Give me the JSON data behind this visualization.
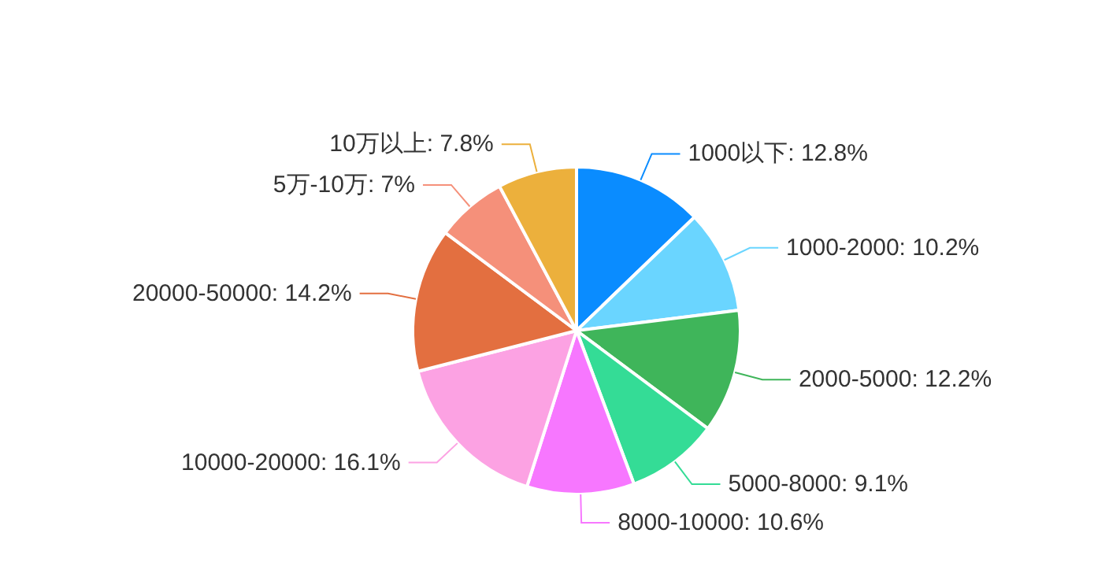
{
  "chart_data": {
    "type": "pie",
    "categories": [
      "1000以下",
      "1000-2000",
      "2000-5000",
      "5000-8000",
      "8000-10000",
      "10000-20000",
      "20000-50000",
      "5万-10万",
      "10万以上"
    ],
    "values": [
      12.8,
      10.2,
      12.2,
      9.1,
      10.6,
      16.1,
      14.2,
      7,
      7.8
    ],
    "value_labels": [
      "12.8%",
      "10.2%",
      "12.2%",
      "9.1%",
      "10.6%",
      "16.1%",
      "14.2%",
      "7%",
      "7.8%"
    ],
    "colors": [
      "#0a8cff",
      "#6ad5ff",
      "#3fb55a",
      "#34dc96",
      "#f777ff",
      "#fca2e3",
      "#e36f40",
      "#f5907a",
      "#ecb03c"
    ]
  }
}
